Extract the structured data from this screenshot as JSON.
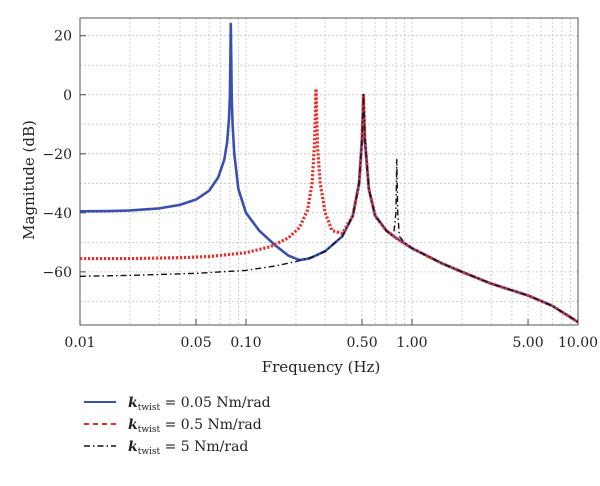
{
  "chart_data": {
    "type": "line",
    "xlabel": "Frequency (Hz)",
    "ylabel": "Magnitude (dB)",
    "x_scale": "log",
    "xlim": [
      0.01,
      10
    ],
    "ylim": [
      -78,
      26
    ],
    "grid": true,
    "legend_position": "bottom-left",
    "x_ticks": [
      {
        "value": 0.01,
        "label": "0.01"
      },
      {
        "value": 0.05,
        "label": "0.05"
      },
      {
        "value": 0.1,
        "label": "0.10"
      },
      {
        "value": 0.5,
        "label": "0.50"
      },
      {
        "value": 1,
        "label": "1.00"
      },
      {
        "value": 5,
        "label": "5.00"
      },
      {
        "value": 10,
        "label": "10.00"
      }
    ],
    "y_ticks": [
      {
        "value": 20,
        "label": "20"
      },
      {
        "value": 0,
        "label": "0"
      },
      {
        "value": -20,
        "label": "−20"
      },
      {
        "value": -40,
        "label": "−40"
      },
      {
        "value": -60,
        "label": "−60"
      }
    ],
    "series": [
      {
        "name": "k_twist = 0.05 Nm/rad",
        "legend": {
          "symbol": "k",
          "sub": "twist",
          "rest": " = 0.05 Nm/rad"
        },
        "color": "#3a50b0",
        "dash": "solid",
        "points": [
          [
            0.01,
            -39.5
          ],
          [
            0.015,
            -39.4
          ],
          [
            0.02,
            -39.2
          ],
          [
            0.03,
            -38.5
          ],
          [
            0.04,
            -37.3
          ],
          [
            0.05,
            -35.5
          ],
          [
            0.06,
            -32.5
          ],
          [
            0.068,
            -28
          ],
          [
            0.074,
            -22
          ],
          [
            0.077,
            -16
          ],
          [
            0.079,
            -8
          ],
          [
            0.08,
            0
          ],
          [
            0.0805,
            12
          ],
          [
            0.081,
            24
          ],
          [
            0.0815,
            12
          ],
          [
            0.082,
            0
          ],
          [
            0.083,
            -10
          ],
          [
            0.085,
            -20
          ],
          [
            0.09,
            -32
          ],
          [
            0.1,
            -40
          ],
          [
            0.12,
            -46
          ],
          [
            0.15,
            -51
          ],
          [
            0.18,
            -54.5
          ],
          [
            0.21,
            -56
          ],
          [
            0.24,
            -55.5
          ],
          [
            0.3,
            -53
          ],
          [
            0.38,
            -48
          ],
          [
            0.44,
            -41
          ],
          [
            0.48,
            -30
          ],
          [
            0.5,
            -15
          ],
          [
            0.51,
            0
          ],
          [
            0.52,
            -15
          ],
          [
            0.55,
            -32
          ],
          [
            0.6,
            -41
          ],
          [
            0.7,
            -46
          ],
          [
            0.8,
            -48.5
          ],
          [
            1,
            -52
          ],
          [
            1.5,
            -57
          ],
          [
            2,
            -60
          ],
          [
            3,
            -64
          ],
          [
            5,
            -68
          ],
          [
            7,
            -71.5
          ],
          [
            10,
            -77
          ]
        ]
      },
      {
        "name": "k_twist = 0.5 Nm/rad",
        "legend": {
          "symbol": "k",
          "sub": "twist",
          "rest": " = 0.5 Nm/rad"
        },
        "color": "#e8302a",
        "dash": "dotted",
        "points": [
          [
            0.01,
            -55.5
          ],
          [
            0.02,
            -55.5
          ],
          [
            0.04,
            -55.2
          ],
          [
            0.06,
            -54.8
          ],
          [
            0.1,
            -53.5
          ],
          [
            0.14,
            -51.5
          ],
          [
            0.18,
            -48.5
          ],
          [
            0.21,
            -45
          ],
          [
            0.235,
            -39
          ],
          [
            0.25,
            -30
          ],
          [
            0.258,
            -18
          ],
          [
            0.262,
            -5
          ],
          [
            0.264,
            2
          ],
          [
            0.266,
            -5
          ],
          [
            0.27,
            -18
          ],
          [
            0.28,
            -30
          ],
          [
            0.3,
            -40
          ],
          [
            0.33,
            -46
          ],
          [
            0.38,
            -47
          ],
          [
            0.44,
            -41
          ],
          [
            0.48,
            -30
          ],
          [
            0.5,
            -15
          ],
          [
            0.51,
            0
          ],
          [
            0.52,
            -15
          ],
          [
            0.55,
            -32
          ],
          [
            0.6,
            -41
          ],
          [
            0.7,
            -46
          ],
          [
            0.8,
            -48.5
          ],
          [
            1,
            -52
          ],
          [
            1.5,
            -57
          ],
          [
            2,
            -60
          ],
          [
            3,
            -64
          ],
          [
            5,
            -68
          ],
          [
            7,
            -71.5
          ],
          [
            10,
            -77
          ]
        ]
      },
      {
        "name": "k_twist = 5 Nm/rad",
        "legend": {
          "symbol": "k",
          "sub": "twist",
          "rest": " = 5 Nm/rad"
        },
        "color": "#111111",
        "dash": "dashdot",
        "points": [
          [
            0.01,
            -61.5
          ],
          [
            0.02,
            -61.2
          ],
          [
            0.05,
            -60.5
          ],
          [
            0.1,
            -59.5
          ],
          [
            0.15,
            -58
          ],
          [
            0.2,
            -56.5
          ],
          [
            0.25,
            -55
          ],
          [
            0.3,
            -53
          ],
          [
            0.38,
            -48
          ],
          [
            0.44,
            -41
          ],
          [
            0.48,
            -30
          ],
          [
            0.5,
            -15
          ],
          [
            0.51,
            0
          ],
          [
            0.52,
            -15
          ],
          [
            0.55,
            -32
          ],
          [
            0.6,
            -41
          ],
          [
            0.7,
            -46
          ],
          [
            0.75,
            -47.5
          ],
          [
            0.78,
            -46
          ],
          [
            0.8,
            -40
          ],
          [
            0.81,
            -22
          ],
          [
            0.82,
            -40
          ],
          [
            0.84,
            -48
          ],
          [
            0.9,
            -50
          ],
          [
            1,
            -52
          ],
          [
            1.5,
            -57
          ],
          [
            2,
            -60
          ],
          [
            3,
            -64
          ],
          [
            5,
            -68
          ],
          [
            7,
            -71.5
          ],
          [
            10,
            -77
          ]
        ]
      }
    ]
  }
}
